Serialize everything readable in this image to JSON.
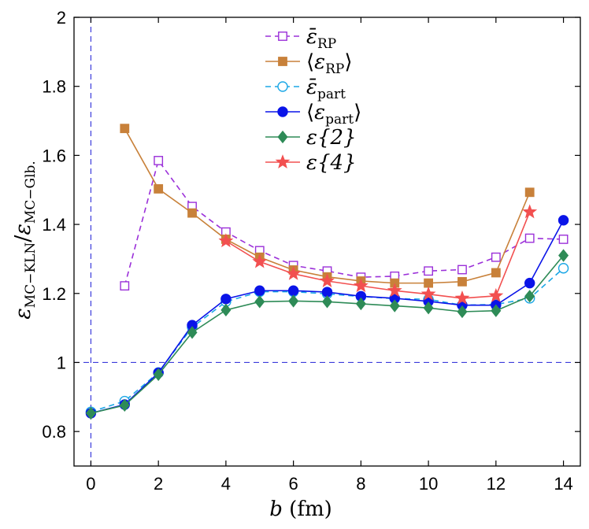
{
  "chart_data": {
    "type": "line",
    "title": "",
    "xlabel": "b (fm)",
    "xlabel_parts": {
      "symbol": "b",
      "unit": "(fm)"
    },
    "ylabel": "ε_MC−KLN / ε_MC−Glb.",
    "ylabel_parts": {
      "sym1": "ε",
      "sub1": "MC−KLN",
      "sep": "/",
      "sym2": "ε",
      "sub2": "MC−Glb."
    },
    "xlim": [
      -0.5,
      14.5
    ],
    "ylim": [
      0.7,
      2.0
    ],
    "xticks": [
      "0",
      "2",
      "4",
      "6",
      "8",
      "10",
      "12",
      "14"
    ],
    "xtick_values": [
      0,
      2,
      4,
      6,
      8,
      10,
      12,
      14
    ],
    "yticks": [
      "0.8",
      "1",
      "1.2",
      "1.4",
      "1.6",
      "1.8",
      "2"
    ],
    "ytick_values": [
      0.8,
      1.0,
      1.2,
      1.4,
      1.6,
      1.8,
      2.0
    ],
    "grid": false,
    "legend_position": "top-center",
    "reference_lines": [
      {
        "orientation": "horizontal",
        "value": 1.0,
        "color": "#3b3bdb",
        "style": "dashed"
      },
      {
        "orientation": "vertical",
        "value": 0,
        "color": "#3b3bdb",
        "style": "dashed"
      }
    ],
    "series": [
      {
        "name": "ε̄_RP",
        "legend": {
          "sym": "ε̄",
          "sub": "RP",
          "open": "",
          "close": ""
        },
        "color": "#9b30d9",
        "line": "dashed",
        "marker": "square",
        "filled": false,
        "x": [
          1,
          2,
          3,
          4,
          5,
          6,
          7,
          8,
          9,
          10,
          11,
          12,
          13,
          14
        ],
        "y": [
          1.222,
          1.585,
          1.452,
          1.378,
          1.324,
          1.281,
          1.265,
          1.247,
          1.25,
          1.265,
          1.269,
          1.305,
          1.36,
          1.357
        ]
      },
      {
        "name": "⟨ε_RP⟩",
        "legend": {
          "sym": "ε",
          "sub": "RP",
          "open": "⟨",
          "close": "⟩"
        },
        "color": "#c8813a",
        "line": "solid",
        "marker": "square",
        "filled": true,
        "x": [
          1,
          2,
          3,
          4,
          5,
          6,
          7,
          8,
          9,
          10,
          11,
          12,
          13
        ],
        "y": [
          1.678,
          1.503,
          1.433,
          1.357,
          1.305,
          1.268,
          1.248,
          1.236,
          1.23,
          1.23,
          1.234,
          1.26,
          1.493
        ]
      },
      {
        "name": "ε̄_part",
        "legend": {
          "sym": "ε̄",
          "sub": "part",
          "open": "",
          "close": ""
        },
        "color": "#1ba7e6",
        "line": "dashed",
        "marker": "circle",
        "filled": false,
        "x": [
          0,
          1,
          2,
          3,
          4,
          5,
          6,
          7,
          8,
          9,
          10,
          11,
          12,
          13,
          14
        ],
        "y": [
          0.857,
          0.888,
          0.971,
          1.102,
          1.176,
          1.205,
          1.205,
          1.199,
          1.191,
          1.185,
          1.183,
          1.166,
          1.168,
          1.186,
          1.273
        ]
      },
      {
        "name": "⟨ε_part⟩",
        "legend": {
          "sym": "ε",
          "sub": "part",
          "open": "⟨",
          "close": "⟩"
        },
        "color": "#0a14e8",
        "line": "solid",
        "marker": "circle",
        "filled": true,
        "x": [
          0,
          1,
          2,
          3,
          4,
          5,
          6,
          7,
          8,
          9,
          10,
          11,
          12,
          13,
          14
        ],
        "y": [
          0.853,
          0.878,
          0.97,
          1.108,
          1.184,
          1.208,
          1.208,
          1.204,
          1.192,
          1.186,
          1.177,
          1.166,
          1.166,
          1.23,
          1.412
        ]
      },
      {
        "name": "ε{2}",
        "legend": {
          "sym": "ε{2}",
          "sub": "",
          "open": "",
          "close": ""
        },
        "color": "#2e8b57",
        "line": "solid",
        "marker": "diamond",
        "filled": true,
        "x": [
          0,
          1,
          2,
          3,
          4,
          5,
          6,
          7,
          8,
          9,
          10,
          11,
          12,
          13,
          14
        ],
        "y": [
          0.853,
          0.876,
          0.965,
          1.087,
          1.152,
          1.176,
          1.178,
          1.176,
          1.17,
          1.164,
          1.158,
          1.147,
          1.15,
          1.192,
          1.31
        ]
      },
      {
        "name": "ε{4}",
        "legend": {
          "sym": "ε{4}",
          "sub": "",
          "open": "",
          "close": ""
        },
        "color": "#f25050",
        "line": "solid",
        "marker": "star",
        "filled": true,
        "x": [
          4,
          5,
          6,
          7,
          8,
          9,
          10,
          11,
          12,
          13
        ],
        "y": [
          1.352,
          1.292,
          1.257,
          1.236,
          1.222,
          1.208,
          1.198,
          1.186,
          1.193,
          1.436
        ]
      }
    ]
  }
}
